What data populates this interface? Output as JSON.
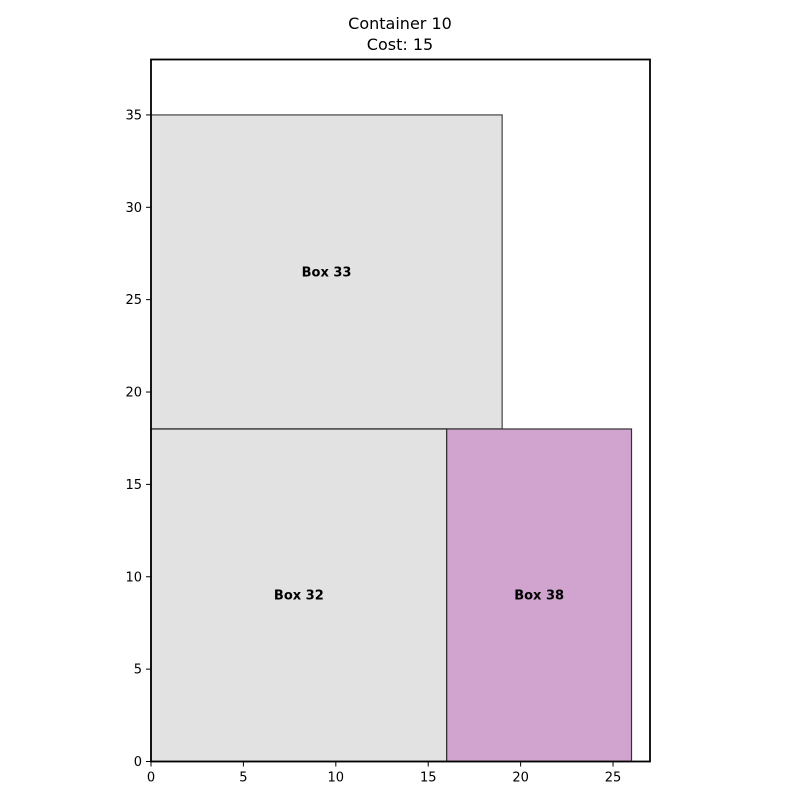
{
  "chart_data": {
    "type": "rectangle-packing",
    "title": "Container 10",
    "subtitle": "Cost: 15",
    "xlim": [
      0,
      27
    ],
    "ylim": [
      0,
      38
    ],
    "xticks": [
      0,
      5,
      10,
      15,
      20,
      25
    ],
    "yticks": [
      0,
      5,
      10,
      15,
      20,
      25,
      30,
      35
    ],
    "grid": false,
    "boxes": [
      {
        "label": "Box 33",
        "x": 0,
        "y": 18,
        "width": 19,
        "height": 17,
        "fill": "#e2e2e2",
        "stroke": "#444444"
      },
      {
        "label": "Box 32",
        "x": 0,
        "y": 0,
        "width": 16,
        "height": 18,
        "fill": "#e2e2e2",
        "stroke": "#222222"
      },
      {
        "label": "Box 38",
        "x": 16,
        "y": 0,
        "width": 10,
        "height": 18,
        "fill": "#d1a3cf",
        "stroke": "#333333"
      }
    ]
  }
}
